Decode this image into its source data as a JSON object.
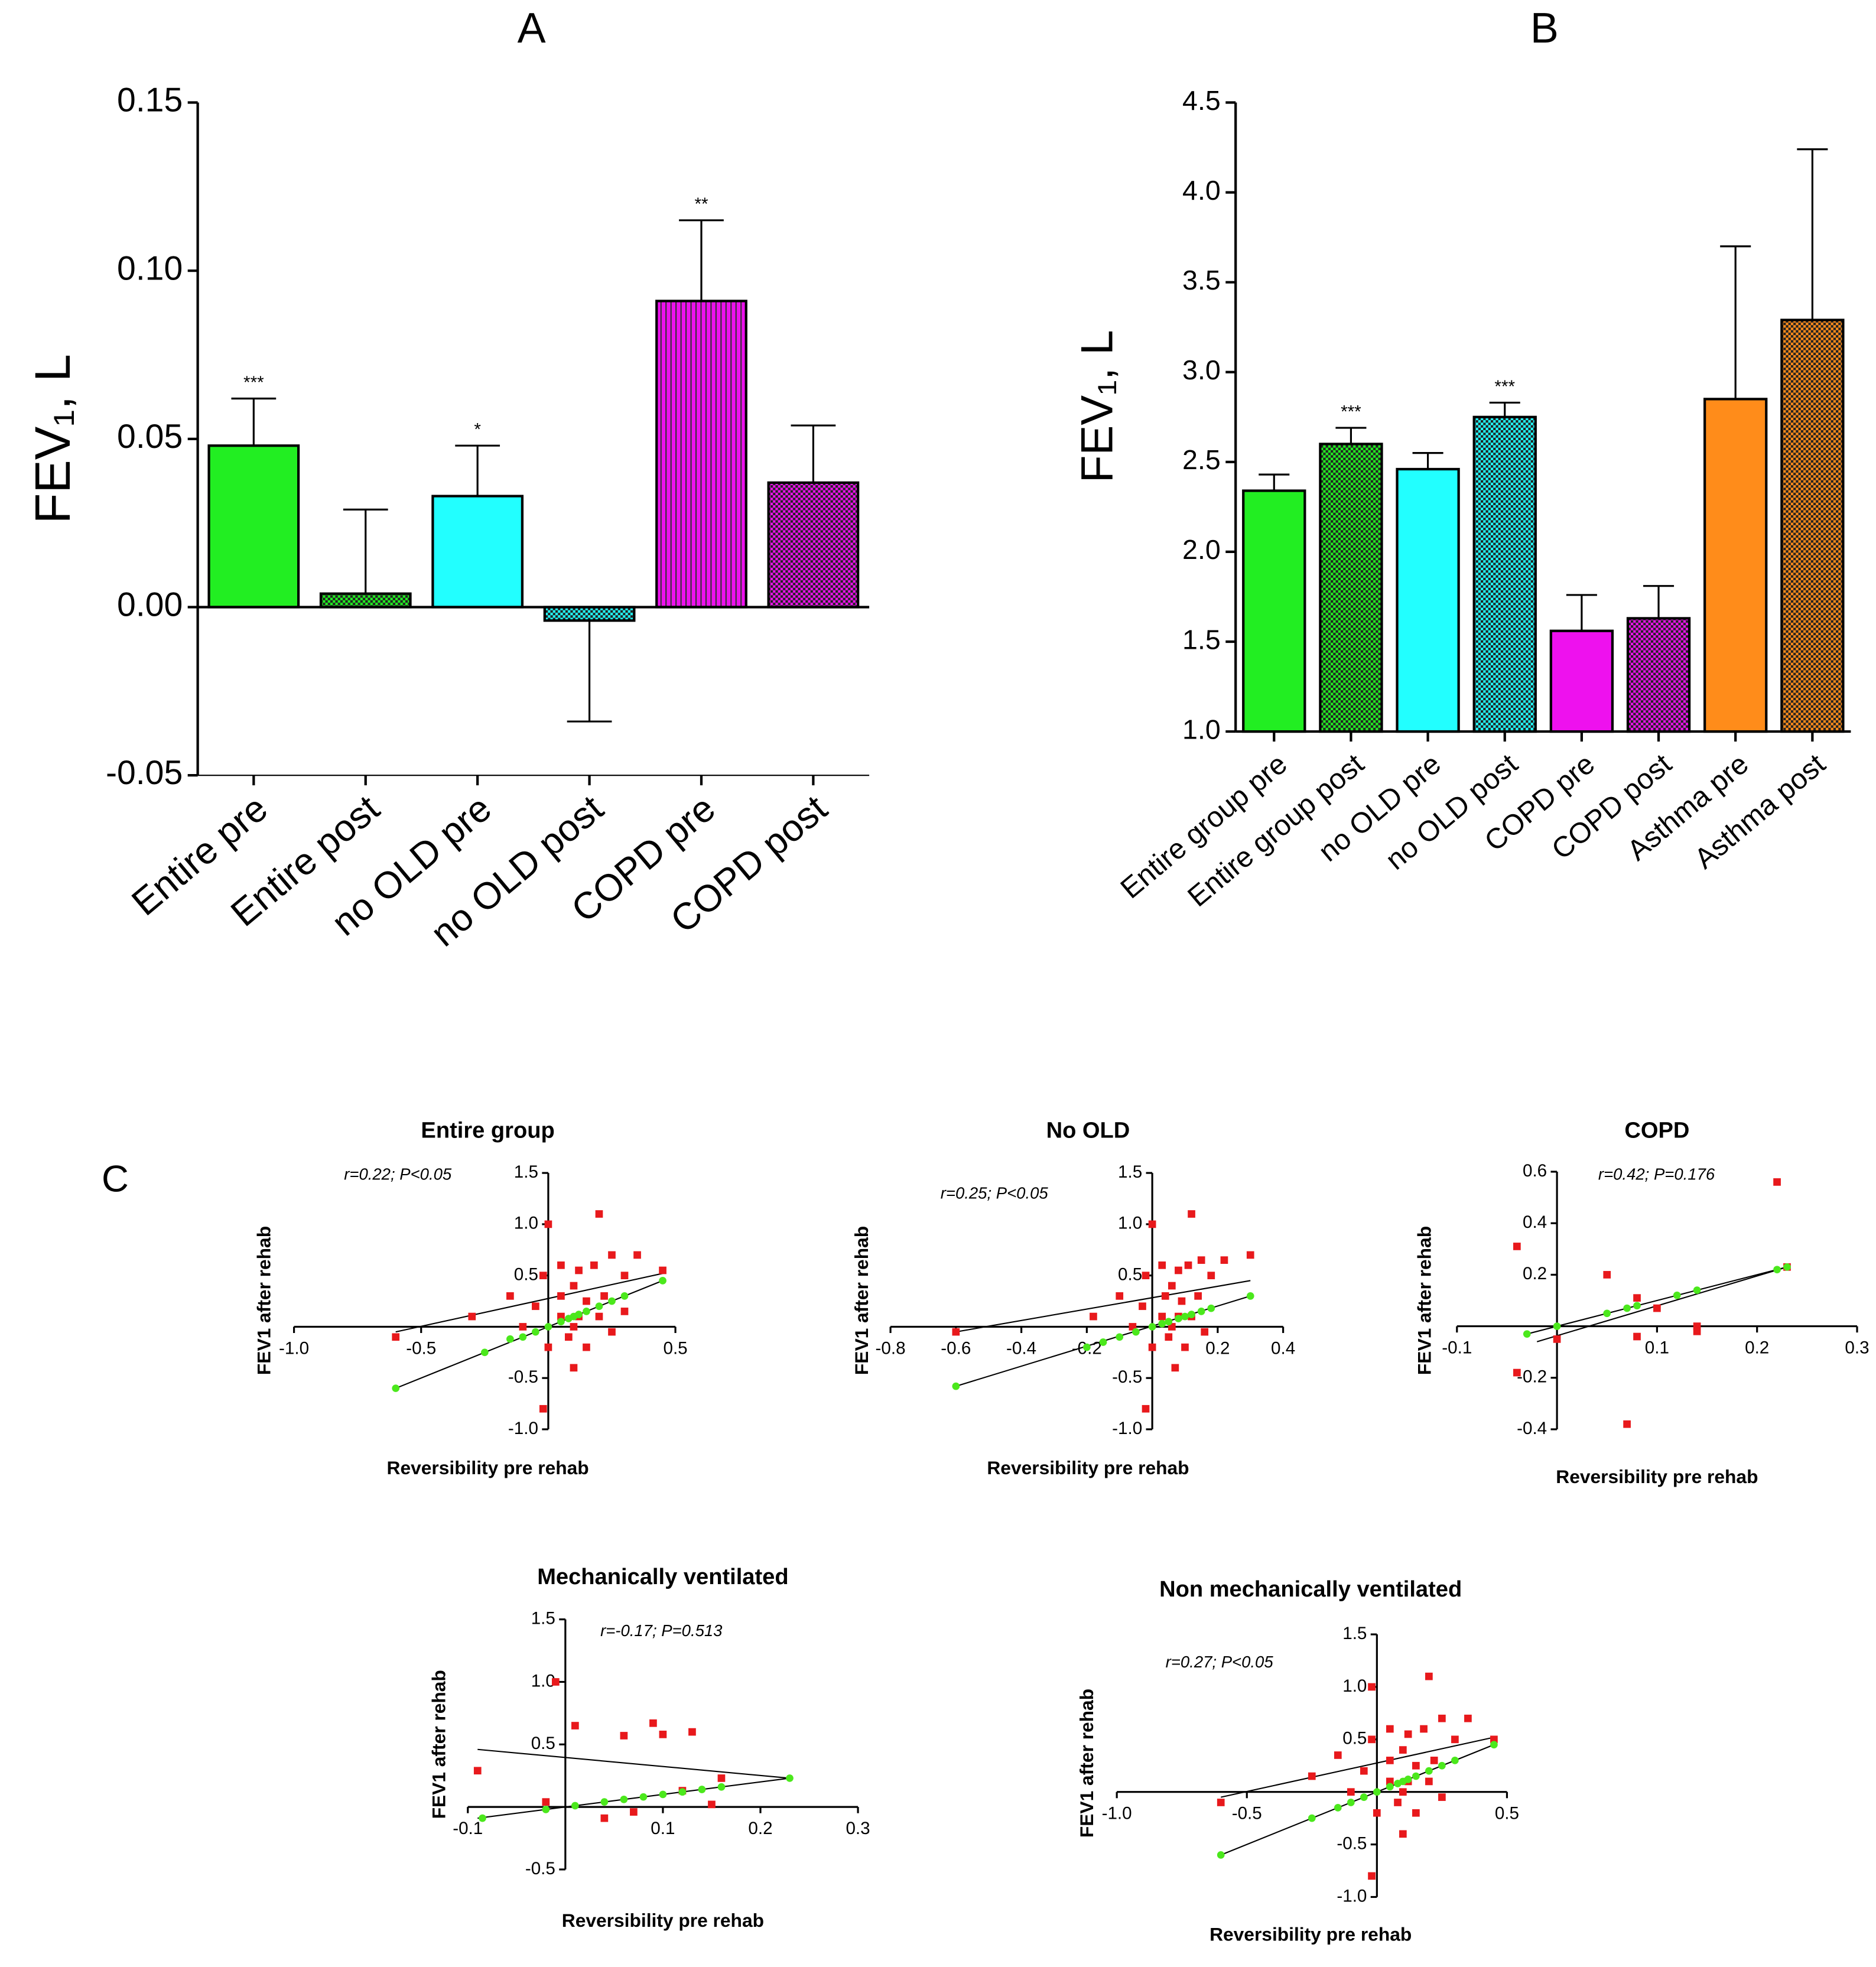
{
  "chart_data": [
    {
      "type": "bar",
      "panel_label": "A",
      "y_label": "FEV₁, L",
      "categories": [
        "Entire pre",
        "Entire post",
        "no OLD pre",
        "no OLD post",
        "COPD pre",
        "COPD post"
      ],
      "values": [
        0.048,
        0.004,
        0.033,
        -0.004,
        0.091,
        0.037
      ],
      "errors": [
        0.014,
        0.025,
        0.015,
        0.03,
        0.024,
        0.017
      ],
      "annotations": [
        "***",
        null,
        "*",
        null,
        "**",
        null
      ],
      "colors": [
        "#22ee22",
        "#22ee22",
        "#22ffff",
        "#22ffff",
        "#ee11ee",
        "#ee11ee"
      ],
      "patterns": [
        "solid",
        "checker",
        "solid",
        "checker",
        "stripes",
        "checker"
      ],
      "ylim": [
        -0.05,
        0.15
      ],
      "yticks": [
        -0.05,
        {
          "value": 0,
          "label": "0.00"
        },
        0.05,
        {
          "value": 0.1,
          "label": "0.10"
        },
        0.15
      ]
    },
    {
      "type": "bar",
      "panel_label": "B",
      "y_label": "FEV₁, L",
      "categories": [
        "Entire group pre",
        "Entire group post",
        "no OLD pre",
        "no OLD post",
        "COPD pre",
        "COPD post",
        "Asthma pre",
        "Asthma post"
      ],
      "values": [
        2.34,
        2.6,
        2.46,
        2.75,
        1.56,
        1.63,
        2.85,
        3.29
      ],
      "errors": [
        0.09,
        0.09,
        0.09,
        0.08,
        0.2,
        0.18,
        0.85,
        0.95
      ],
      "annotations": [
        null,
        "***",
        null,
        "***",
        null,
        null,
        null,
        null
      ],
      "colors": [
        "#22ee22",
        "#22ee22",
        "#22ffff",
        "#22ffff",
        "#ee11ee",
        "#ee11ee",
        "#ff8c1a",
        "#ff8c1a"
      ],
      "patterns": [
        "solid",
        "checker",
        "solid",
        "checker",
        "solid",
        "checker",
        "solid",
        "checker"
      ],
      "ylim": [
        1.0,
        4.5
      ],
      "yticks": [
        {
          "value": 1,
          "label": "1.0"
        },
        1.5,
        {
          "value": 2,
          "label": "2.0"
        },
        2.5,
        {
          "value": 3,
          "label": "3.0"
        },
        3.5,
        {
          "value": 4,
          "label": "4.0"
        },
        4.5
      ]
    },
    {
      "type": "scatter",
      "panel_label": "C",
      "title": "Entire group",
      "annotation": "r=0.22; P<0.05",
      "x_label": "Reversibility pre rehab",
      "y_label": "FEV1 after rehab",
      "xlim": [
        -1.0,
        0.5
      ],
      "ylim": [
        -1.0,
        1.5
      ],
      "xticks": [
        {
          "value": -1,
          "label": "-1.0"
        },
        -0.5,
        0.5
      ],
      "yticks": [
        {
          "value": -1,
          "label": "-1.0"
        },
        -0.5,
        0.5,
        {
          "value": 1,
          "label": "1.0"
        },
        1.5
      ],
      "series": [
        {
          "color": "#e8191c",
          "marker": "square",
          "x": [
            -0.6,
            -0.3,
            -0.15,
            -0.05,
            0,
            -0.02,
            0.05,
            0.05,
            0.08,
            0.1,
            0.1,
            0.12,
            0.15,
            0.15,
            0.18,
            0.2,
            0.2,
            0.22,
            0.25,
            0.3,
            0.35,
            0.1,
            -0.02,
            0,
            0.25,
            0.05,
            0.12,
            0.45,
            -0.1,
            0.3
          ],
          "values": [
            -0.1,
            0.1,
            0.3,
            0.2,
            1.0,
            0.5,
            0.1,
            0.6,
            -0.1,
            0.4,
            0,
            0.55,
            0.25,
            -0.2,
            0.6,
            1.1,
            0.1,
            0.3,
            0.7,
            0.5,
            0.7,
            -0.4,
            -0.8,
            -0.2,
            -0.05,
            0.3,
            0.1,
            0.55,
            0,
            0.15
          ]
        },
        {
          "color": "#4be81c",
          "marker": "circle",
          "x": [
            -0.6,
            -0.25,
            -0.15,
            -0.1,
            -0.05,
            0,
            0.05,
            0.08,
            0.1,
            0.12,
            0.15,
            0.2,
            0.25,
            0.3,
            0.45
          ],
          "values": [
            -0.6,
            -0.25,
            -0.12,
            -0.1,
            -0.05,
            0,
            0.05,
            0.08,
            0.1,
            0.12,
            0.15,
            0.2,
            0.25,
            0.3,
            0.45
          ]
        }
      ],
      "fit_lines": [
        {
          "x": [
            -0.6,
            0.45
          ],
          "y": [
            -0.05,
            0.52
          ]
        },
        {
          "x": [
            -0.6,
            0.45
          ],
          "y": [
            -0.6,
            0.45
          ]
        }
      ]
    },
    {
      "type": "scatter",
      "title": "No OLD",
      "annotation": "r=0.25; P<0.05",
      "x_label": "Reversibility pre rehab",
      "y_label": "FEV1 after rehab",
      "xlim": [
        -0.8,
        0.4
      ],
      "ylim": [
        -1.0,
        1.5
      ],
      "xticks": [
        -0.8,
        -0.6,
        -0.4,
        -0.2,
        0.2,
        0.4
      ],
      "yticks": [
        {
          "value": -1,
          "label": "-1.0"
        },
        -0.5,
        0.5,
        {
          "value": 1,
          "label": "1.0"
        },
        1.5
      ],
      "series": [
        {
          "color": "#e8191c",
          "marker": "square",
          "x": [
            -0.6,
            -0.18,
            -0.1,
            -0.03,
            0,
            -0.02,
            0.03,
            0.03,
            0.05,
            0.06,
            0.06,
            0.08,
            0.09,
            0.1,
            0.11,
            0.12,
            0.12,
            0.14,
            0.15,
            0.18,
            0.22,
            0.07,
            -0.02,
            0,
            0.16,
            0.04,
            0.08,
            0.3,
            -0.06
          ],
          "values": [
            -0.05,
            0.1,
            0.3,
            0.2,
            1.0,
            0.5,
            0.1,
            0.6,
            -0.1,
            0.4,
            0,
            0.55,
            0.25,
            -0.2,
            0.6,
            1.1,
            0.1,
            0.3,
            0.65,
            0.5,
            0.65,
            -0.4,
            -0.8,
            -0.2,
            -0.05,
            0.3,
            0.1,
            0.7,
            0
          ]
        },
        {
          "color": "#4be81c",
          "marker": "circle",
          "x": [
            -0.6,
            -0.2,
            -0.15,
            -0.1,
            -0.05,
            0,
            0.03,
            0.05,
            0.08,
            0.1,
            0.12,
            0.15,
            0.18,
            0.3
          ],
          "values": [
            -0.58,
            -0.2,
            -0.15,
            -0.1,
            -0.05,
            0,
            0.03,
            0.05,
            0.08,
            0.1,
            0.12,
            0.15,
            0.18,
            0.3
          ]
        }
      ],
      "fit_lines": [
        {
          "x": [
            -0.6,
            0.3
          ],
          "y": [
            -0.05,
            0.45
          ]
        },
        {
          "x": [
            -0.6,
            0.3
          ],
          "y": [
            -0.58,
            0.3
          ]
        }
      ]
    },
    {
      "type": "scatter",
      "title": "COPD",
      "annotation": "r=0.42; P=0.176",
      "x_label": "Reversibility pre rehab",
      "y_label": "FEV1 after rehab",
      "xlim": [
        -0.1,
        0.3
      ],
      "ylim": [
        -0.4,
        0.6
      ],
      "xticks": [
        -0.1,
        0.1,
        0.2,
        0.3
      ],
      "yticks": [
        -0.4,
        -0.2,
        0.2,
        0.4,
        0.6
      ],
      "series": [
        {
          "color": "#e8191c",
          "marker": "square",
          "x": [
            -0.04,
            -0.04,
            0,
            0.05,
            0.07,
            0.08,
            0.08,
            0.1,
            0.14,
            0.14,
            0.22,
            0.23
          ],
          "values": [
            0.31,
            -0.18,
            -0.05,
            0.2,
            -0.38,
            0.11,
            -0.04,
            0.07,
            0,
            -0.02,
            0.56,
            0.23
          ]
        },
        {
          "color": "#4be81c",
          "marker": "circle",
          "x": [
            -0.03,
            0,
            0.05,
            0.07,
            0.08,
            0.12,
            0.14,
            0.22,
            0.23
          ],
          "values": [
            -0.03,
            0,
            0.05,
            0.07,
            0.08,
            0.12,
            0.14,
            0.22,
            0.23
          ]
        }
      ],
      "fit_lines": [
        {
          "x": [
            -0.02,
            0.23
          ],
          "y": [
            -0.06,
            0.23
          ]
        },
        {
          "x": [
            -0.03,
            0.23
          ],
          "y": [
            -0.03,
            0.23
          ]
        }
      ]
    },
    {
      "type": "scatter",
      "title": "Mechanically ventilated",
      "annotation": "r=-0.17; P=0.513",
      "x_label": "Reversibility pre rehab",
      "y_label": "FEV1 after rehab",
      "xlim": [
        -0.1,
        0.3
      ],
      "ylim": [
        -0.5,
        1.5
      ],
      "xticks": [
        -0.1,
        0.1,
        0.2,
        0.3
      ],
      "yticks": [
        -0.5,
        0.5,
        {
          "value": 1,
          "label": "1.0"
        },
        1.5
      ],
      "series": [
        {
          "color": "#e8191c",
          "marker": "square",
          "x": [
            -0.09,
            -0.02,
            -0.01,
            0.01,
            0.04,
            0.06,
            0.09,
            0.1,
            0.12,
            0.13,
            0.15,
            0.16,
            0.07
          ],
          "values": [
            0.29,
            0.04,
            1.0,
            0.65,
            -0.09,
            0.57,
            0.67,
            0.58,
            0.13,
            0.6,
            0.02,
            0.23,
            -0.04
          ]
        },
        {
          "color": "#4be81c",
          "marker": "circle",
          "x": [
            -0.085,
            -0.02,
            0.01,
            0.04,
            0.06,
            0.08,
            0.1,
            0.12,
            0.14,
            0.16,
            0.23
          ],
          "values": [
            -0.09,
            -0.02,
            0.01,
            0.04,
            0.06,
            0.08,
            0.1,
            0.12,
            0.14,
            0.16,
            0.23
          ]
        }
      ],
      "fit_lines": [
        {
          "x": [
            -0.09,
            0.23
          ],
          "y": [
            0.46,
            0.23
          ]
        },
        {
          "x": [
            -0.09,
            0.23
          ],
          "y": [
            -0.09,
            0.23
          ]
        }
      ]
    },
    {
      "type": "scatter",
      "title": "Non mechanically ventilated",
      "annotation": "r=0.27; P<0.05",
      "x_label": "Reversibility pre rehab",
      "y_label": "FEV1 after rehab",
      "xlim": [
        -1.0,
        0.5
      ],
      "ylim": [
        -1.0,
        1.5
      ],
      "xticks": [
        {
          "value": -1,
          "label": "-1.0"
        },
        -0.5,
        0.5
      ],
      "yticks": [
        {
          "value": -1,
          "label": "-1.0"
        },
        -0.5,
        0.5,
        {
          "value": 1,
          "label": "1.0"
        },
        1.5
      ],
      "series": [
        {
          "color": "#e8191c",
          "marker": "square",
          "x": [
            -0.6,
            -0.25,
            -0.15,
            -0.05,
            -0.02,
            -0.02,
            0.05,
            0.05,
            0.08,
            0.1,
            0.1,
            0.12,
            0.15,
            0.15,
            0.18,
            0.2,
            0.2,
            0.22,
            0.25,
            0.3,
            0.35,
            0.1,
            -0.02,
            0,
            0.25,
            0.05,
            0.12,
            0.45,
            -0.1
          ],
          "values": [
            -0.1,
            0.15,
            0.35,
            0.2,
            1.0,
            0.5,
            0.1,
            0.6,
            -0.1,
            0.4,
            0,
            0.55,
            0.25,
            -0.2,
            0.6,
            1.1,
            0.1,
            0.3,
            0.7,
            0.5,
            0.7,
            -0.4,
            -0.8,
            -0.2,
            -0.05,
            0.3,
            0.1,
            0.5,
            0
          ]
        },
        {
          "color": "#4be81c",
          "marker": "circle",
          "x": [
            -0.6,
            -0.25,
            -0.15,
            -0.1,
            -0.05,
            0,
            0.05,
            0.08,
            0.1,
            0.12,
            0.15,
            0.2,
            0.25,
            0.3,
            0.45
          ],
          "values": [
            -0.6,
            -0.25,
            -0.15,
            -0.1,
            -0.05,
            0,
            0.05,
            0.08,
            0.1,
            0.12,
            0.15,
            0.2,
            0.25,
            0.3,
            0.45
          ]
        }
      ],
      "fit_lines": [
        {
          "x": [
            -0.6,
            0.45
          ],
          "y": [
            -0.05,
            0.52
          ]
        },
        {
          "x": [
            -0.6,
            0.45
          ],
          "y": [
            -0.6,
            0.45
          ]
        }
      ]
    }
  ]
}
